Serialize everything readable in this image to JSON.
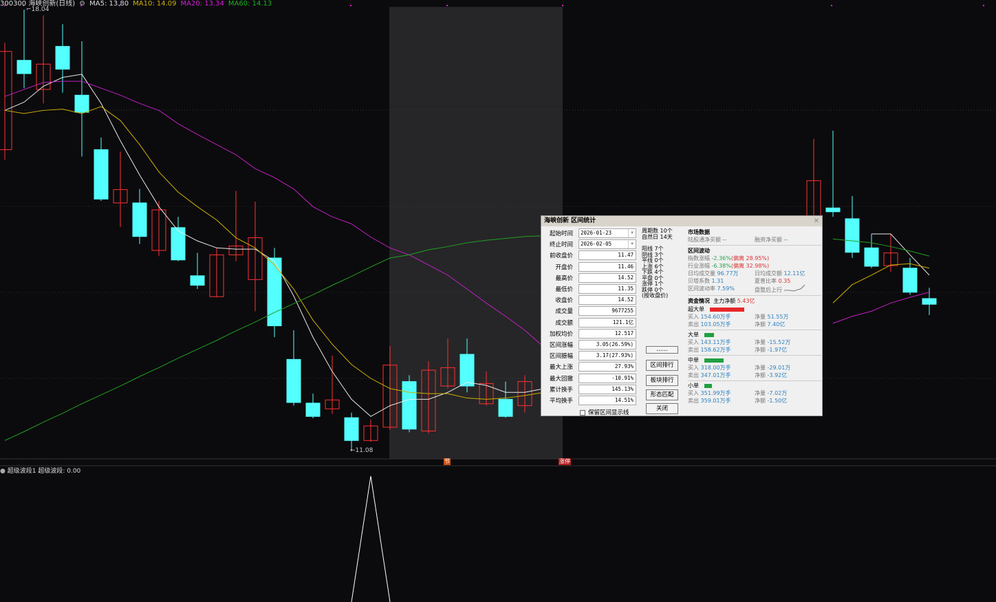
{
  "header": {
    "code_name": "300300 海峡创新(日线)",
    "ma5": "MA5: 13.80",
    "ma10": "MA10: 14.09",
    "ma20": "MA20: 13.34",
    "ma60": "MA60: 14.13"
  },
  "colors": {
    "up": "#ff3030",
    "down": "#54ffff",
    "ma5": "#e8e8e8",
    "ma10": "#d0b000",
    "ma20": "#c020c0",
    "ma60": "#20a020",
    "shade": "#262628"
  },
  "chart_data": {
    "type": "candlestick",
    "ylim": [
      11.08,
      18.04
    ],
    "annotations": {
      "high": "18.04",
      "low": "←11.08"
    },
    "candles": [
      [
        15.83,
        17.52,
        15.67,
        17.38
      ],
      [
        17.24,
        18.04,
        16.8,
        17.03
      ],
      [
        16.78,
        17.95,
        16.56,
        17.18
      ],
      [
        17.46,
        17.81,
        16.73,
        17.1
      ],
      [
        16.69,
        17.54,
        15.72,
        16.42
      ],
      [
        15.83,
        16.02,
        15.02,
        15.05
      ],
      [
        14.99,
        15.8,
        14.61,
        15.2
      ],
      [
        14.99,
        15.21,
        14.34,
        14.46
      ],
      [
        14.24,
        15.02,
        14.15,
        14.88
      ],
      [
        14.6,
        14.77,
        14.07,
        14.09
      ],
      [
        13.84,
        14.2,
        13.63,
        13.69
      ],
      [
        13.51,
        14.28,
        13.5,
        14.17
      ],
      [
        14.17,
        15.18,
        14.07,
        14.31
      ],
      [
        13.78,
        15.01,
        13.28,
        14.44
      ],
      [
        14.12,
        14.28,
        12.87,
        13.05
      ],
      [
        12.52,
        12.98,
        11.79,
        11.84
      ],
      [
        11.83,
        11.98,
        11.59,
        11.62
      ],
      [
        11.74,
        12.58,
        11.66,
        11.88
      ],
      [
        11.6,
        11.68,
        11.08,
        11.24
      ],
      [
        11.24,
        11.57,
        11.22,
        11.47
      ],
      [
        11.45,
        12.73,
        11.41,
        12.43
      ],
      [
        12.17,
        12.27,
        11.37,
        11.42
      ],
      [
        11.39,
        12.49,
        11.35,
        12.35
      ],
      [
        12.1,
        12.85,
        12.06,
        12.39
      ],
      [
        12.6,
        12.85,
        12.0,
        12.1
      ],
      [
        11.82,
        12.33,
        11.79,
        12.14
      ],
      [
        11.89,
        12.17,
        11.6,
        11.62
      ],
      [
        11.79,
        12.27,
        11.68,
        12.17
      ],
      null,
      null,
      null,
      null,
      null,
      null,
      null,
      null,
      null,
      null,
      null,
      null,
      null,
      null,
      [
        14.61,
        16.0,
        14.5,
        15.34
      ],
      [
        14.91,
        16.13,
        14.77,
        14.85
      ],
      [
        14.74,
        15.1,
        14.12,
        14.21
      ],
      [
        14.28,
        14.5,
        13.96,
        13.99
      ],
      [
        14.0,
        14.5,
        13.9,
        14.2
      ],
      [
        13.96,
        14.12,
        13.54,
        13.58
      ],
      [
        13.48,
        13.65,
        13.22,
        13.39
      ]
    ],
    "candle_format": "open,high,low,close",
    "ma5": [
      16.45,
      16.58,
      16.83,
      16.97,
      17.02,
      16.56,
      15.97,
      15.43,
      14.93,
      14.55,
      14.39,
      14.28,
      14.26,
      14.26,
      14.07,
      13.52,
      12.87,
      12.33,
      11.89,
      11.62,
      11.79,
      11.89,
      11.89,
      12.0,
      12.16,
      12.11,
      12.0,
      12.0,
      12.06,
      null,
      null,
      null,
      null,
      null,
      null,
      null,
      null,
      null,
      null,
      null,
      null,
      null,
      null,
      null,
      null,
      14.5,
      14.5,
      14.17,
      13.85
    ],
    "ma10": [
      16.45,
      16.4,
      16.45,
      16.47,
      16.4,
      16.51,
      16.29,
      15.91,
      15.48,
      15.16,
      14.93,
      14.72,
      14.44,
      14.28,
      14.01,
      13.63,
      13.14,
      12.76,
      12.44,
      12.22,
      12.06,
      12.0,
      11.98,
      11.98,
      11.91,
      11.89,
      11.91,
      11.95,
      12.0,
      null,
      null,
      null,
      null,
      null,
      null,
      null,
      null,
      null,
      null,
      null,
      null,
      null,
      null,
      13.41,
      13.7,
      13.85,
      14.01,
      14.03,
      13.96
    ],
    "ma20": [
      16.67,
      16.78,
      16.89,
      16.91,
      16.91,
      16.8,
      16.69,
      16.56,
      16.45,
      16.24,
      16.07,
      15.91,
      15.75,
      15.53,
      15.39,
      15.21,
      14.93,
      14.77,
      14.66,
      14.45,
      14.28,
      14.17,
      14.01,
      13.85,
      13.63,
      13.41,
      13.2,
      12.98,
      12.71,
      null,
      null,
      null,
      null,
      null,
      null,
      null,
      null,
      null,
      null,
      null,
      null,
      null,
      null,
      13.09,
      13.2,
      13.28,
      13.41,
      13.5,
      13.58
    ],
    "ma60": [
      11.24,
      11.38,
      11.53,
      11.67,
      11.82,
      11.96,
      12.1,
      12.25,
      12.39,
      12.54,
      12.68,
      12.82,
      12.97,
      13.11,
      13.26,
      13.4,
      13.54,
      13.69,
      13.83,
      13.98,
      14.12,
      14.17,
      14.25,
      14.3,
      14.36,
      14.4,
      14.43,
      14.46,
      14.47,
      null,
      null,
      null,
      null,
      null,
      null,
      null,
      null,
      null,
      null,
      null,
      null,
      null,
      null,
      14.42,
      14.39,
      14.36,
      14.3,
      14.23,
      14.15
    ],
    "indicator": {
      "label": "超级波段1",
      "value_label": "超级波段: 0.00",
      "spike_index": 19
    },
    "markers": [
      "节",
      "涨停"
    ]
  },
  "dialog": {
    "title": "海峡创新 区间统计",
    "fields": [
      {
        "label": "起始时间",
        "value": "2026-01-23"
      },
      {
        "label": "终止时间",
        "value": "2026-02-05"
      },
      {
        "label": "前收盘价",
        "value": "11.47"
      },
      {
        "label": "开盘价",
        "value": "11.46"
      },
      {
        "label": "最高价",
        "value": "14.52"
      },
      {
        "label": "最低价",
        "value": "11.35"
      },
      {
        "label": "收盘价",
        "value": "14.52"
      },
      {
        "label": "成交量",
        "value": "9677255"
      },
      {
        "label": "成交额",
        "value": "121.1亿"
      },
      {
        "label": "加权均价",
        "value": "12.517"
      },
      {
        "label": "区间涨幅",
        "value": "3.05(26.59%)"
      },
      {
        "label": "区间振幅",
        "value": "3.17(27.93%)"
      },
      {
        "label": "最大上涨",
        "value": "27.93%"
      },
      {
        "label": "最大回撤",
        "value": "-10.91%"
      },
      {
        "label": "累计换手",
        "value": "145.13%"
      },
      {
        "label": "平均换手",
        "value": "14.51%"
      }
    ],
    "stats1": [
      "周期数  10个",
      "自然日  14天"
    ],
    "stats2": [
      "阳线  7个",
      "阴线  3个",
      "平线  0个",
      "上涨  6个",
      "下跌  4个",
      "平盘  0个",
      "涨停  1个",
      "跌停  0个",
      "(按收盘价)"
    ],
    "buttons": [
      "......",
      "区间排行",
      "板块排行",
      "形态匹配",
      "关闭"
    ],
    "checkbox": "保留区间显示线",
    "market": {
      "title": "市场数据",
      "hk_label": "陆股通净买额",
      "hk_value": "--",
      "margin_label": "融资净买额",
      "margin_value": "--"
    },
    "volatility": {
      "title": "区间波动",
      "index_label": "指数涨幅",
      "index_value": "-2.36%",
      "index_dev": "(偏离 28.95%)",
      "ind_label": "行业涨幅",
      "ind_value": "-6.38%",
      "ind_dev": "(偏离 32.98%)",
      "avg_vol_label": "日均成交量",
      "avg_vol": "96.77万",
      "avg_amt_label": "日均成交额",
      "avg_amt": "12.11亿",
      "beta_label": "贝塔系数",
      "beta": "1.31",
      "sharpe_label": "夏普比率",
      "sharpe": "0.35",
      "rate_label": "区间波动率",
      "rate": "7.59%",
      "trend": "盘整后上行"
    },
    "funds": {
      "title": "资金情况",
      "main_label": "主力净额",
      "main_value": "5.43亿",
      "groups": [
        {
          "name": "超大单",
          "color": "#e82828",
          "bar": 1.0,
          "buy": "154.60万手",
          "sell": "103.05万手",
          "net_vol": "51.55万",
          "net_amt": "7.40亿"
        },
        {
          "name": "大单",
          "color": "#20a040",
          "bar": 0.28,
          "buy": "143.11万手",
          "sell": "158.62万手",
          "net_vol": "-15.52万",
          "net_amt": "-1.97亿"
        },
        {
          "name": "中单",
          "color": "#20a040",
          "bar": 0.55,
          "buy": "318.00万手",
          "sell": "347.01万手",
          "net_vol": "-29.01万",
          "net_amt": "-3.92亿"
        },
        {
          "name": "小单",
          "color": "#20a040",
          "bar": 0.21,
          "buy": "351.99万手",
          "sell": "359.01万手",
          "net_vol": "-7.02万",
          "net_amt": "-1.50亿"
        }
      ],
      "buy_label": "买入",
      "sell_label": "卖出",
      "net_vol_label": "净量",
      "net_amt_label": "净额"
    }
  }
}
